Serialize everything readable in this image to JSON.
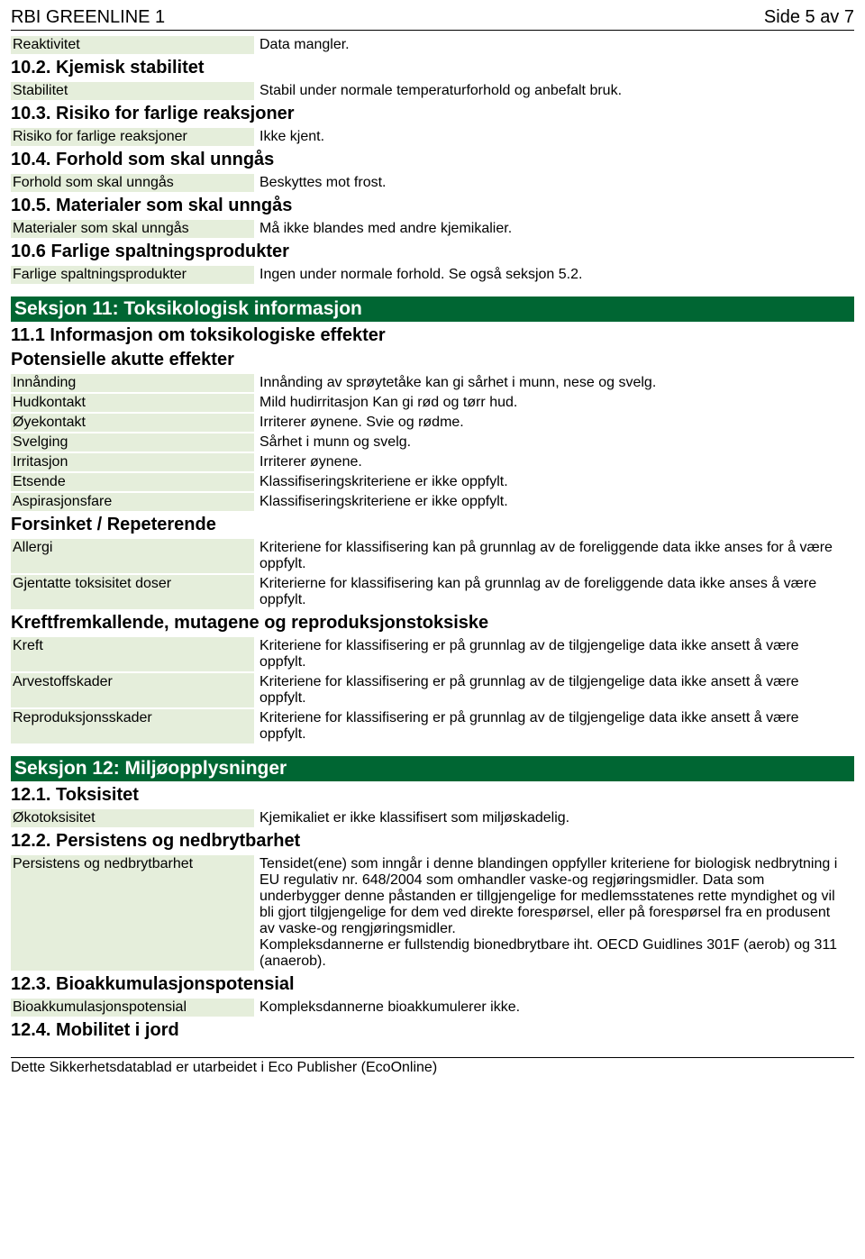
{
  "colors": {
    "section_bar_bg": "#006633",
    "section_bar_text": "#ffffff",
    "kv_label_bg": "#e5eedb",
    "body_text": "#000000",
    "page_bg": "#ffffff"
  },
  "header": {
    "title": "RBI GREENLINE 1",
    "page": "Side 5 av 7"
  },
  "s10": {
    "reaktivitet": {
      "label": "Reaktivitet",
      "value": "Data mangler."
    },
    "h102": "10.2. Kjemisk stabilitet",
    "stabilitet": {
      "label": "Stabilitet",
      "value": "Stabil under normale temperaturforhold og anbefalt bruk."
    },
    "h103": "10.3. Risiko for farlige reaksjoner",
    "risiko": {
      "label": "Risiko for farlige reaksjoner",
      "value": "Ikke kjent."
    },
    "h104": "10.4. Forhold som skal unngås",
    "forhold": {
      "label": "Forhold som skal unngås",
      "value": "Beskyttes mot frost."
    },
    "h105": "10.5. Materialer som skal unngås",
    "materialer": {
      "label": "Materialer som skal unngås",
      "value": "Må ikke blandes med andre kjemikalier."
    },
    "h106": "10.6 Farlige spaltningsprodukter",
    "spalt": {
      "label": "Farlige spaltningsprodukter",
      "value": "Ingen under normale forhold. Se også seksjon 5.2."
    }
  },
  "s11": {
    "bar": "Seksjon 11: Toksikologisk informasjon",
    "h111": "11.1 Informasjon om toksikologiske effekter",
    "h_potensielle": "Potensielle akutte effekter",
    "innanding": {
      "label": "Innånding",
      "value": "Innånding av sprøytetåke kan gi sårhet i munn, nese og svelg."
    },
    "hudkontakt": {
      "label": "Hudkontakt",
      "value": "Mild hudirritasjon Kan gi rød og tørr hud."
    },
    "oyekontakt": {
      "label": "Øyekontakt",
      "value": "Irriterer øynene. Svie og rødme."
    },
    "svelging": {
      "label": "Svelging",
      "value": "Sårhet i munn og svelg."
    },
    "irritasjon": {
      "label": "Irritasjon",
      "value": "Irriterer øynene."
    },
    "etsende": {
      "label": "Etsende",
      "value": "Klassifiseringskriteriene er ikke oppfylt."
    },
    "aspirasjonsfare": {
      "label": "Aspirasjonsfare",
      "value": "Klassifiseringskriteriene er ikke oppfylt."
    },
    "h_forsinket": "Forsinket / Repeterende",
    "allergi": {
      "label": "Allergi",
      "value": "Kriteriene for klassifisering kan på grunnlag av de foreliggende data ikke anses for å være oppfylt."
    },
    "gjentatte": {
      "label": "Gjentatte toksisitet doser",
      "value": "Kriterierne for klassifisering kan på grunnlag av de foreliggende data ikke anses å være oppfylt."
    },
    "h_kreft": "Kreftfremkallende, mutagene og reproduksjonstoksiske",
    "kreft": {
      "label": "Kreft",
      "value": "Kriteriene for klassifisering er på grunnlag av de tilgjengelige data ikke ansett å være oppfylt."
    },
    "arvestoff": {
      "label": "Arvestoffskader",
      "value": "Kriteriene for klassifisering er på grunnlag av de tilgjengelige data ikke ansett å være oppfylt."
    },
    "reprod": {
      "label": "Reproduksjonsskader",
      "value": "Kriteriene for klassifisering er på grunnlag av de tilgjengelige data ikke ansett å være oppfylt."
    }
  },
  "s12": {
    "bar": "Seksjon 12: Miljøopplysninger",
    "h121": "12.1. Toksisitet",
    "okotoks": {
      "label": "Økotoksisitet",
      "value": "Kjemikaliet er ikke klassifisert som miljøskadelig."
    },
    "h122": "12.2. Persistens og nedbrytbarhet",
    "persist": {
      "label": "Persistens og nedbrytbarhet",
      "value": "Tensidet(ene) som inngår i denne blandingen oppfyller kriteriene for biologisk nedbrytning i EU regulativ nr. 648/2004 som omhandler vaske-og regjøringsmidler. Data som underbygger denne påstanden er tillgjengelige for medlemsstatenes rette myndighet og vil bli gjort tilgjengelige for dem ved direkte forespørsel, eller på forespørsel fra en produsent av vaske-og rengjøringsmidler.\nKompleksdannerne er fullstendig bionedbrytbare iht. OECD Guidlines 301F (aerob) og 311 (anaerob)."
    },
    "h123": "12.3. Bioakkumulasjonspotensial",
    "bioakk": {
      "label": "Bioakkumulasjonspotensial",
      "value": "Kompleksdannerne bioakkumulerer ikke."
    },
    "h124": "12.4. Mobilitet i jord"
  },
  "footer": "Dette Sikkerhetsdatablad er utarbeidet i Eco Publisher (EcoOnline)"
}
